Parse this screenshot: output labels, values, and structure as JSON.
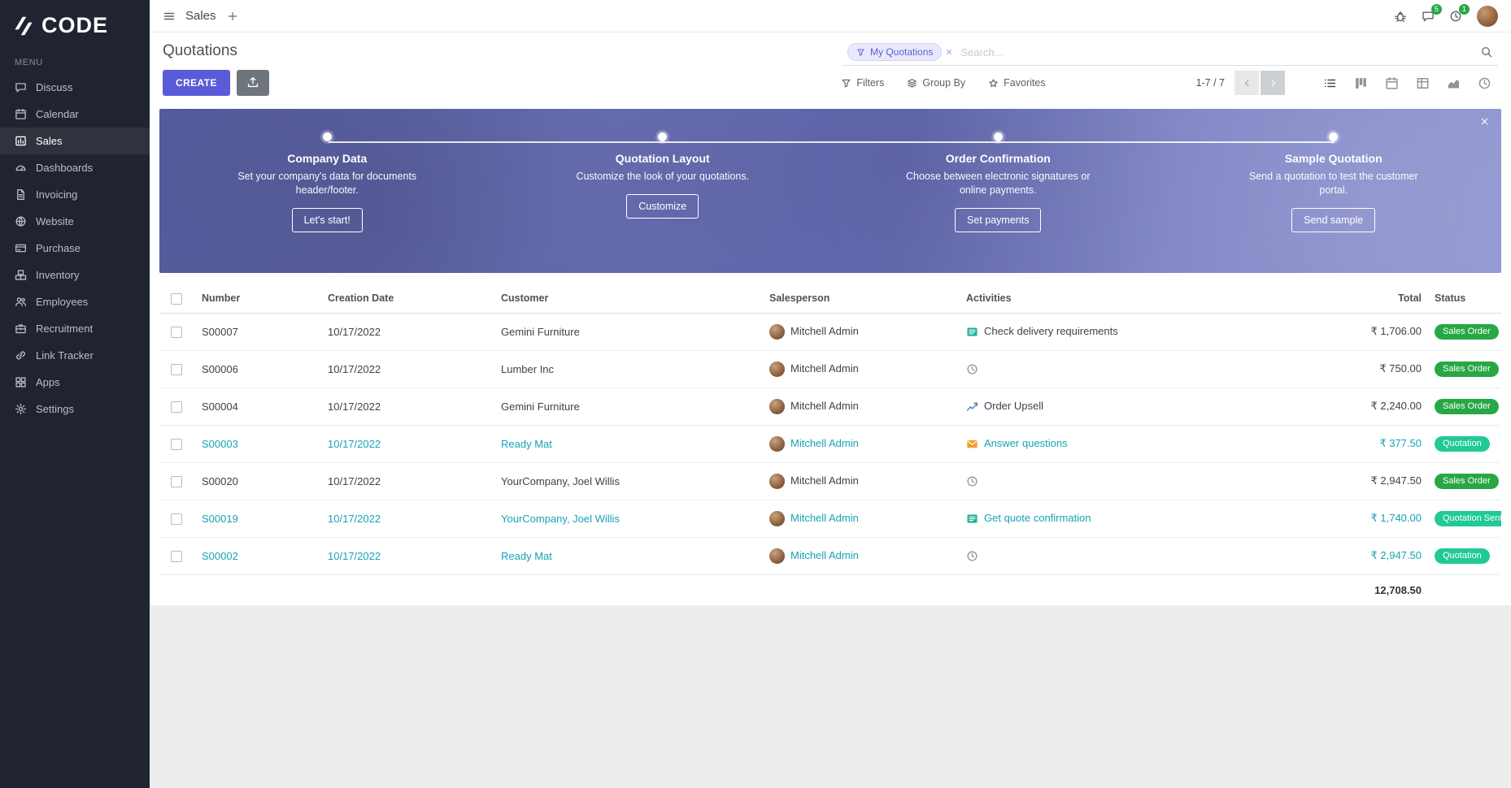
{
  "brand": {
    "logo": "CODE",
    "menu_label": "MENU"
  },
  "sidebar": {
    "items": [
      {
        "label": "Discuss",
        "icon": "discuss-icon",
        "active": false
      },
      {
        "label": "Calendar",
        "icon": "calendar-icon",
        "active": false
      },
      {
        "label": "Sales",
        "icon": "sales-icon",
        "active": true
      },
      {
        "label": "Dashboards",
        "icon": "dashboards-icon",
        "active": false
      },
      {
        "label": "Invoicing",
        "icon": "invoicing-icon",
        "active": false
      },
      {
        "label": "Website",
        "icon": "website-icon",
        "active": false
      },
      {
        "label": "Purchase",
        "icon": "purchase-icon",
        "active": false
      },
      {
        "label": "Inventory",
        "icon": "inventory-icon",
        "active": false
      },
      {
        "label": "Employees",
        "icon": "employees-icon",
        "active": false
      },
      {
        "label": "Recruitment",
        "icon": "recruitment-icon",
        "active": false
      },
      {
        "label": "Link Tracker",
        "icon": "link-tracker-icon",
        "active": false
      },
      {
        "label": "Apps",
        "icon": "apps-icon",
        "active": false
      },
      {
        "label": "Settings",
        "icon": "settings-icon",
        "active": false
      }
    ]
  },
  "topbar": {
    "app_title": "Sales",
    "messages_badge": "5",
    "activities_badge": "1"
  },
  "control_panel": {
    "title": "Quotations",
    "search": {
      "facet_label": "My Quotations",
      "placeholder": "Search..."
    },
    "create_label": "CREATE",
    "filters_label": "Filters",
    "group_by_label": "Group By",
    "favorites_label": "Favorites",
    "pager_range": "1-7 / 7"
  },
  "banner": {
    "steps": [
      {
        "title": "Company Data",
        "description": "Set your company's data for documents header/footer.",
        "button": "Let's start!"
      },
      {
        "title": "Quotation Layout",
        "description": "Customize the look of your quotations.",
        "button": "Customize"
      },
      {
        "title": "Order Confirmation",
        "description": "Choose between electronic signatures or online payments.",
        "button": "Set payments"
      },
      {
        "title": "Sample Quotation",
        "description": "Send a quotation to test the customer portal.",
        "button": "Send sample"
      }
    ]
  },
  "table": {
    "columns": [
      "Number",
      "Creation Date",
      "Customer",
      "Salesperson",
      "Activities",
      "Total",
      "Status"
    ],
    "rows": [
      {
        "number": "S00007",
        "creation_date": "10/17/2022",
        "customer": "Gemini Furniture",
        "salesperson": "Mitchell Admin",
        "activity": {
          "icon": "activity-list-icon",
          "label": "Check delivery requirements"
        },
        "total": "₹ 1,706.00",
        "status": "Sales Order",
        "status_type": "sales-order",
        "decoration": "normal"
      },
      {
        "number": "S00006",
        "creation_date": "10/17/2022",
        "customer": "Lumber Inc",
        "salesperson": "Mitchell Admin",
        "activity": {
          "icon": "activity-clock-icon",
          "label": ""
        },
        "total": "₹ 750.00",
        "status": "Sales Order",
        "status_type": "sales-order",
        "decoration": "normal"
      },
      {
        "number": "S00004",
        "creation_date": "10/17/2022",
        "customer": "Gemini Furniture",
        "salesperson": "Mitchell Admin",
        "activity": {
          "icon": "activity-upsell-icon",
          "label": "Order Upsell"
        },
        "total": "₹ 2,240.00",
        "status": "Sales Order",
        "status_type": "sales-order",
        "decoration": "normal"
      },
      {
        "number": "S00003",
        "creation_date": "10/17/2022",
        "customer": "Ready Mat",
        "salesperson": "Mitchell Admin",
        "activity": {
          "icon": "activity-mail-icon",
          "label": "Answer questions"
        },
        "total": "₹ 377.50",
        "status": "Quotation",
        "status_type": "quotation",
        "decoration": "info"
      },
      {
        "number": "S00020",
        "creation_date": "10/17/2022",
        "customer": "YourCompany, Joel Willis",
        "salesperson": "Mitchell Admin",
        "activity": {
          "icon": "activity-clock-icon",
          "label": ""
        },
        "total": "₹ 2,947.50",
        "status": "Sales Order",
        "status_type": "sales-order",
        "decoration": "normal"
      },
      {
        "number": "S00019",
        "creation_date": "10/17/2022",
        "customer": "YourCompany, Joel Willis",
        "salesperson": "Mitchell Admin",
        "activity": {
          "icon": "activity-list-icon",
          "label": "Get quote confirmation"
        },
        "total": "₹ 1,740.00",
        "status": "Quotation Sent",
        "status_type": "quotation",
        "decoration": "info"
      },
      {
        "number": "S00002",
        "creation_date": "10/17/2022",
        "customer": "Ready Mat",
        "salesperson": "Mitchell Admin",
        "activity": {
          "icon": "activity-clock-icon",
          "label": ""
        },
        "total": "₹ 2,947.50",
        "status": "Quotation",
        "status_type": "quotation",
        "decoration": "info"
      }
    ],
    "footer_total": "12,708.50"
  },
  "colors": {
    "sidebar_bg": "#1f2430",
    "primary": "#5a5bd8",
    "banner_overlay": "#6a70b6",
    "sales_order_badge": "#28a745",
    "quotation_badge": "#20c997",
    "info_text": "#17a2b8",
    "notification_badge": "#28a745"
  }
}
